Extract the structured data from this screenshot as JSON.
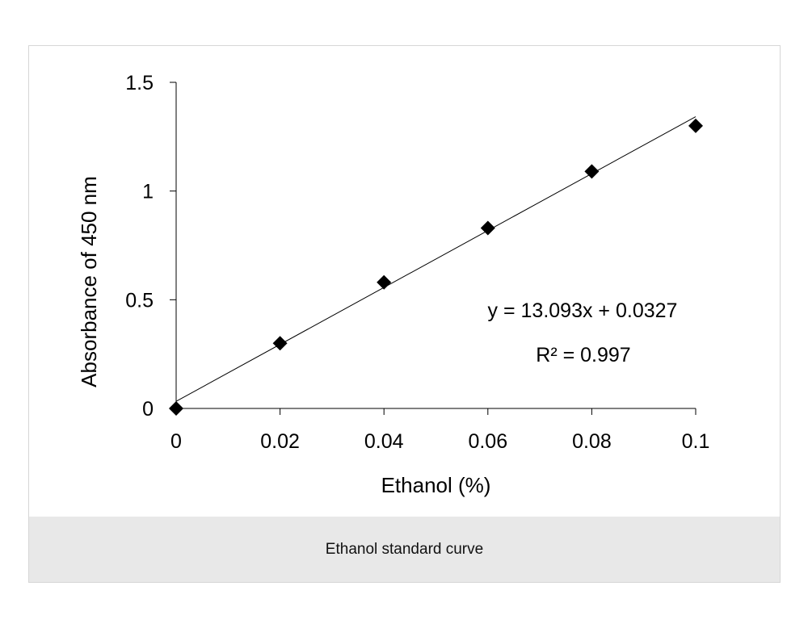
{
  "caption": "Ethanol standard curve",
  "chart_data": {
    "type": "scatter",
    "xlabel": "Ethanol (%)",
    "ylabel": "Absorbance of 450 nm",
    "xlim": [
      0,
      0.1
    ],
    "ylim": [
      0,
      1.5
    ],
    "x_ticks": [
      "0",
      "0.02",
      "0.04",
      "0.06",
      "0.08",
      "0.1"
    ],
    "y_ticks": [
      "0",
      "0.5",
      "1",
      "1.5"
    ],
    "series": [
      {
        "marker": "diamond",
        "color": "#000000",
        "points": [
          {
            "x": 0,
            "y": 0.0
          },
          {
            "x": 0.02,
            "y": 0.3
          },
          {
            "x": 0.04,
            "y": 0.58
          },
          {
            "x": 0.06,
            "y": 0.83
          },
          {
            "x": 0.08,
            "y": 1.09
          },
          {
            "x": 0.1,
            "y": 1.3
          }
        ]
      }
    ],
    "trendline": {
      "slope": 13.093,
      "intercept": 0.0327,
      "color": "#000000"
    },
    "annotations": {
      "equation": "y = 13.093x + 0.0327",
      "r_squared": "R² = 0.997"
    },
    "grid": false,
    "legend": "none"
  }
}
